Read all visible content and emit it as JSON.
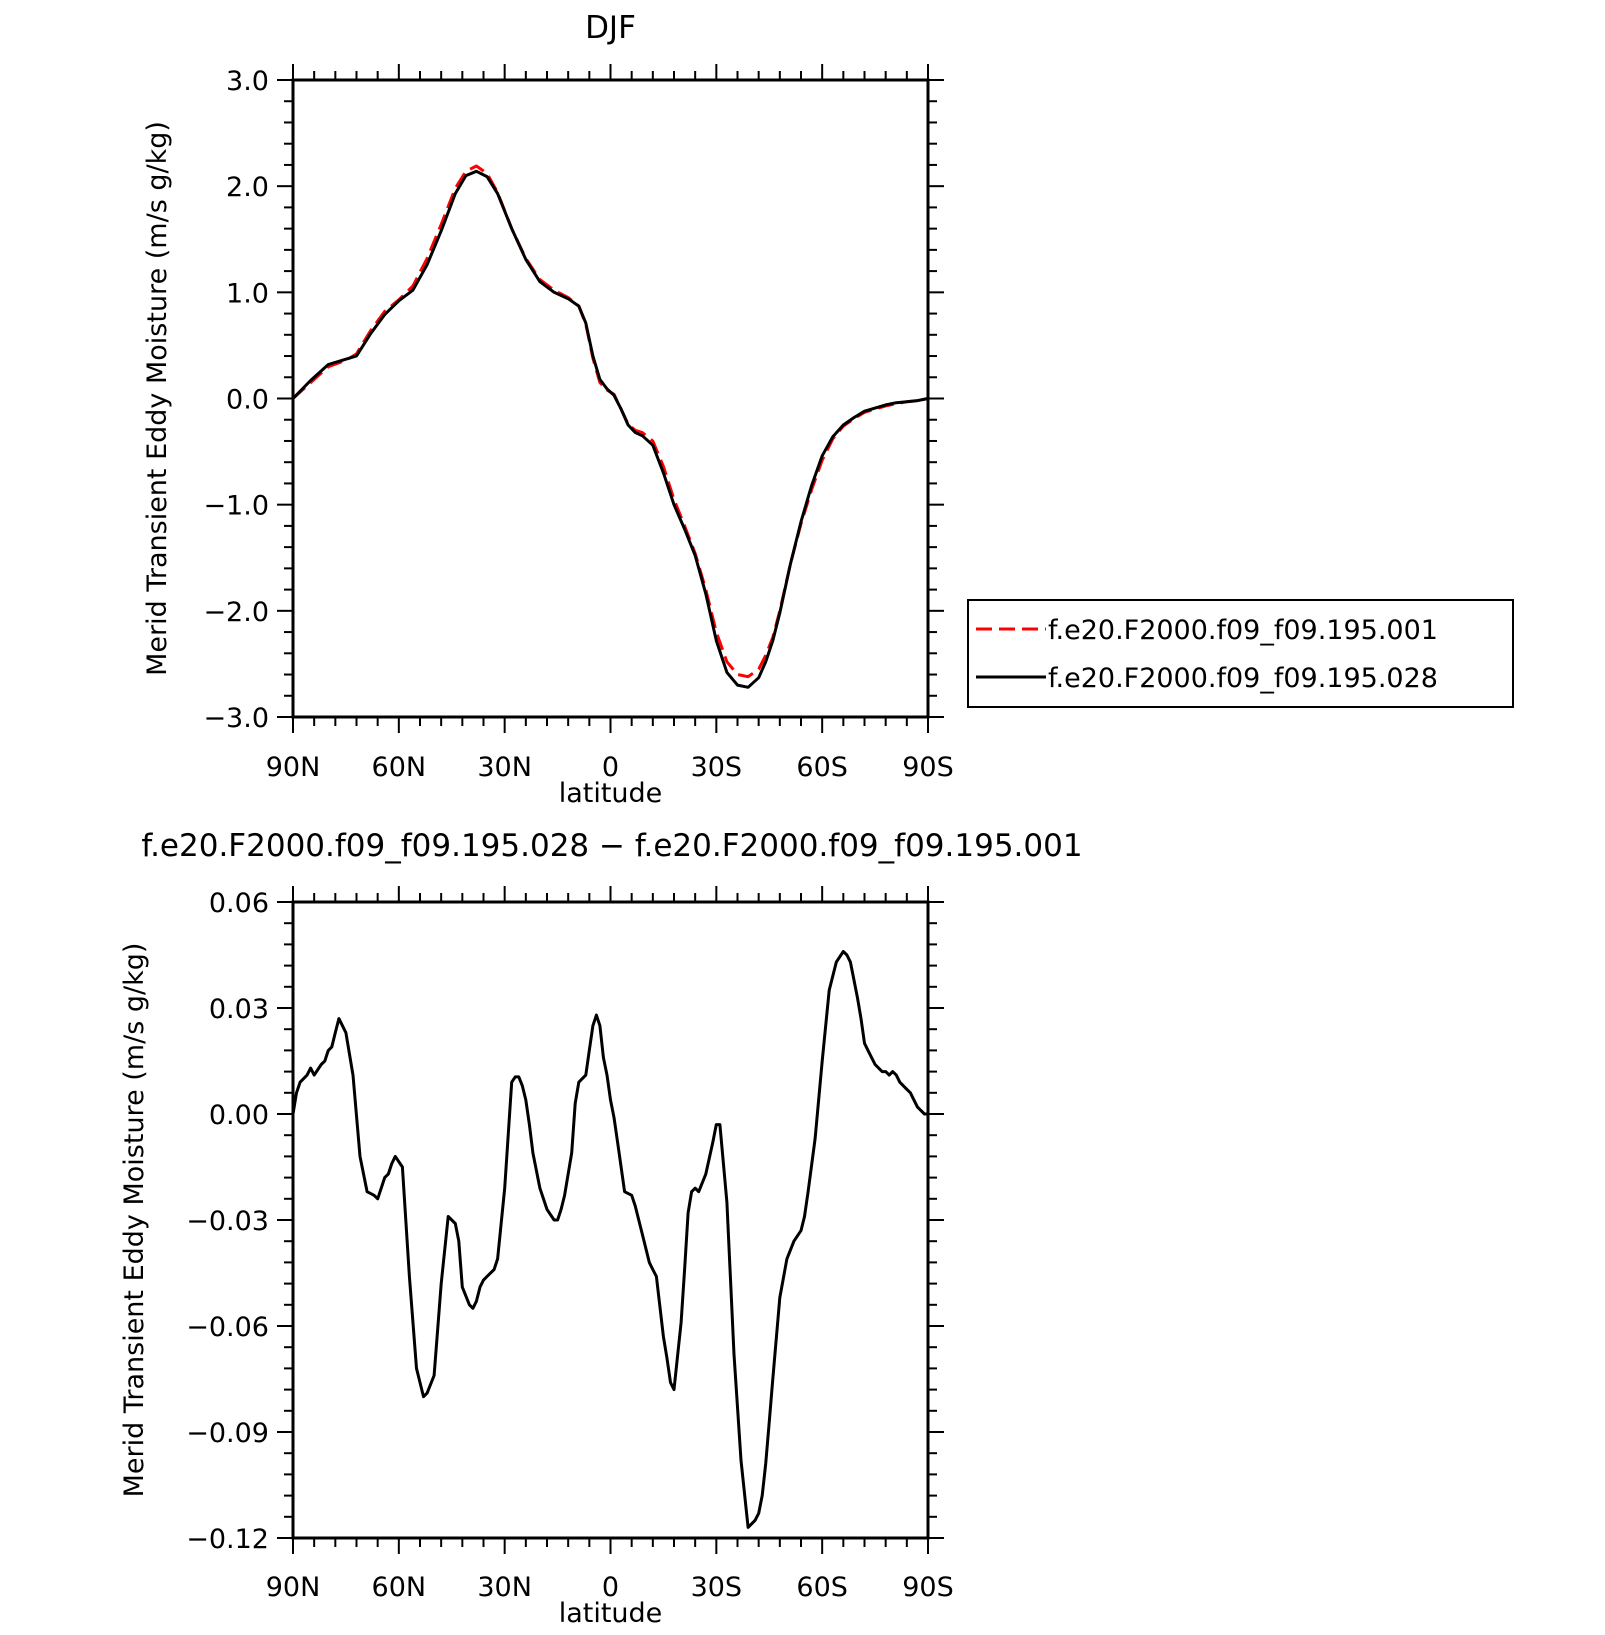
{
  "chart_data": [
    {
      "type": "line",
      "title": "DJF",
      "xlabel": "latitude",
      "ylabel": "Merid Transient Eddy Moisture (m/s g/kg)",
      "xlim": [
        90,
        -90
      ],
      "ylim": [
        -3.0,
        3.0
      ],
      "x_ticks": [
        90,
        60,
        30,
        0,
        -30,
        -60,
        -90
      ],
      "x_tick_labels": [
        "90N",
        "60N",
        "30N",
        "0",
        "30S",
        "60S",
        "90S"
      ],
      "y_ticks": [
        -3.0,
        -2.0,
        -1.0,
        0.0,
        1.0,
        2.0,
        3.0
      ],
      "y_tick_labels": [
        "−3.0",
        "−2.0",
        "−1.0",
        "0.0",
        "1.0",
        "2.0",
        "3.0"
      ],
      "grid": false,
      "legend": "right",
      "series": [
        {
          "name": "f.e20.F2000.f09_f09.195.001",
          "color": "#ff0000",
          "dash": "dashed",
          "x": [
            90,
            85,
            80,
            75,
            72,
            68,
            64,
            60,
            56,
            52,
            48,
            44,
            41,
            38,
            35,
            32,
            28,
            24,
            20,
            16,
            12,
            9,
            7,
            5,
            3,
            1,
            -1,
            -3,
            -5,
            -7,
            -9,
            -12,
            -15,
            -18,
            -21,
            -24,
            -27,
            -30,
            -33,
            -36,
            -39,
            -42,
            -44,
            -46,
            -48,
            -51,
            -54,
            -57,
            -60,
            -63,
            -66,
            -69,
            -72,
            -75,
            -78,
            -81,
            -84,
            -87,
            -90
          ],
          "y": [
            0.0,
            0.15,
            0.3,
            0.36,
            0.42,
            0.64,
            0.82,
            0.93,
            1.06,
            1.32,
            1.64,
            1.98,
            2.14,
            2.19,
            2.12,
            1.94,
            1.6,
            1.32,
            1.12,
            1.02,
            0.95,
            0.87,
            0.7,
            0.38,
            0.15,
            0.08,
            0.04,
            -0.1,
            -0.24,
            -0.3,
            -0.32,
            -0.4,
            -0.64,
            -0.95,
            -1.2,
            -1.46,
            -1.8,
            -2.2,
            -2.48,
            -2.6,
            -2.62,
            -2.55,
            -2.42,
            -2.25,
            -2.0,
            -1.56,
            -1.18,
            -0.86,
            -0.58,
            -0.38,
            -0.26,
            -0.19,
            -0.13,
            -0.1,
            -0.07,
            -0.05,
            -0.03,
            -0.02,
            0.0
          ]
        },
        {
          "name": "f.e20.F2000.f09_f09.195.028",
          "color": "#000000",
          "dash": "solid",
          "x": [
            90,
            85,
            80,
            75,
            72,
            68,
            64,
            60,
            56,
            52,
            48,
            44,
            41,
            38,
            35,
            32,
            28,
            24,
            20,
            16,
            12,
            9,
            7,
            5,
            3,
            1,
            -1,
            -3,
            -5,
            -7,
            -9,
            -12,
            -15,
            -18,
            -21,
            -24,
            -27,
            -30,
            -33,
            -36,
            -39,
            -42,
            -44,
            -46,
            -48,
            -51,
            -54,
            -57,
            -60,
            -63,
            -66,
            -69,
            -72,
            -75,
            -78,
            -81,
            -84,
            -87,
            -90
          ],
          "y": [
            0.0,
            0.17,
            0.32,
            0.37,
            0.4,
            0.61,
            0.79,
            0.92,
            1.02,
            1.26,
            1.58,
            1.93,
            2.1,
            2.14,
            2.09,
            1.93,
            1.6,
            1.31,
            1.1,
            1.0,
            0.94,
            0.87,
            0.71,
            0.4,
            0.18,
            0.09,
            0.03,
            -0.1,
            -0.25,
            -0.32,
            -0.35,
            -0.44,
            -0.7,
            -1.0,
            -1.23,
            -1.48,
            -1.84,
            -2.28,
            -2.58,
            -2.7,
            -2.72,
            -2.63,
            -2.48,
            -2.28,
            -2.02,
            -1.56,
            -1.16,
            -0.82,
            -0.54,
            -0.36,
            -0.25,
            -0.18,
            -0.12,
            -0.09,
            -0.06,
            -0.04,
            -0.03,
            -0.02,
            0.0
          ]
        }
      ]
    },
    {
      "type": "line",
      "title": "f.e20.F2000.f09_f09.195.028 − f.e20.F2000.f09_f09.195.001",
      "xlabel": "latitude",
      "ylabel": "Merid Transient Eddy Moisture (m/s g/kg)",
      "xlim": [
        90,
        -90
      ],
      "ylim": [
        -0.12,
        0.06
      ],
      "x_ticks": [
        90,
        60,
        30,
        0,
        -30,
        -60,
        -90
      ],
      "x_tick_labels": [
        "90N",
        "60N",
        "30N",
        "0",
        "30S",
        "60S",
        "90S"
      ],
      "y_ticks": [
        -0.12,
        -0.09,
        -0.06,
        -0.03,
        0.0,
        0.03,
        0.06
      ],
      "y_tick_labels": [
        "−0.12",
        "−0.09",
        "−0.06",
        "−0.03",
        "0.00",
        "0.03",
        "0.06"
      ],
      "grid": false,
      "series": [
        {
          "color": "#000000",
          "dash": "solid",
          "x": [
            90,
            89,
            88,
            86,
            85,
            84,
            82,
            81,
            80,
            79,
            78,
            77,
            75,
            73,
            71,
            69,
            67,
            66,
            64,
            63,
            62,
            61,
            59,
            57,
            55,
            53,
            52,
            50,
            48,
            46,
            44,
            43,
            42,
            40,
            39,
            38,
            37,
            36,
            35,
            33,
            32,
            30,
            28,
            27,
            26,
            25,
            24,
            23,
            22,
            20,
            18,
            16,
            15,
            14,
            13,
            11,
            10,
            9,
            7,
            6,
            5,
            4,
            3,
            2,
            1,
            0,
            -1,
            -2,
            -4,
            -6,
            -7,
            -9,
            -11,
            -12,
            -13,
            -15,
            -16,
            -17,
            -18,
            -20,
            -21,
            -22,
            -23,
            -24,
            -25,
            -27,
            -29,
            -30,
            -31,
            -33,
            -35,
            -37,
            -39,
            -41,
            -42,
            -43,
            -44,
            -45,
            -46,
            -48,
            -50,
            -52,
            -54,
            -55,
            -56,
            -58,
            -60,
            -62,
            -64,
            -66,
            -67,
            -68,
            -69,
            -70,
            -71,
            -72,
            -73,
            -75,
            -77,
            -78,
            -79,
            -80,
            -81,
            -82,
            -84,
            -85,
            -86,
            -87,
            -88,
            -89,
            -90
          ],
          "y": [
            0.0,
            0.006,
            0.009,
            0.011,
            0.013,
            0.011,
            0.014,
            0.015,
            0.018,
            0.019,
            0.023,
            0.027,
            0.023,
            0.011,
            -0.012,
            -0.022,
            -0.023,
            -0.024,
            -0.018,
            -0.017,
            -0.014,
            -0.012,
            -0.015,
            -0.046,
            -0.072,
            -0.08,
            -0.079,
            -0.074,
            -0.048,
            -0.029,
            -0.031,
            -0.036,
            -0.049,
            -0.054,
            -0.055,
            -0.053,
            -0.049,
            -0.047,
            -0.046,
            -0.044,
            -0.041,
            -0.021,
            0.009,
            0.0105,
            0.0105,
            0.008,
            0.004,
            -0.003,
            -0.011,
            -0.021,
            -0.027,
            -0.03,
            -0.03,
            -0.027,
            -0.023,
            -0.011,
            0.003,
            0.009,
            0.011,
            0.018,
            0.025,
            0.028,
            0.025,
            0.016,
            0.011,
            0.004,
            -0.001,
            -0.008,
            -0.022,
            -0.023,
            -0.026,
            -0.034,
            -0.042,
            -0.044,
            -0.046,
            -0.063,
            -0.069,
            -0.076,
            -0.078,
            -0.059,
            -0.044,
            -0.028,
            -0.022,
            -0.021,
            -0.022,
            -0.017,
            -0.008,
            -0.003,
            -0.003,
            -0.025,
            -0.068,
            -0.098,
            -0.117,
            -0.115,
            -0.113,
            -0.108,
            -0.099,
            -0.087,
            -0.075,
            -0.052,
            -0.041,
            -0.036,
            -0.033,
            -0.029,
            -0.022,
            -0.007,
            0.015,
            0.035,
            0.043,
            0.046,
            0.045,
            0.043,
            0.038,
            0.033,
            0.027,
            0.02,
            0.018,
            0.014,
            0.012,
            0.012,
            0.011,
            0.012,
            0.011,
            0.009,
            0.007,
            0.006,
            0.004,
            0.002,
            0.001,
            0.0,
            0.0
          ]
        }
      ]
    }
  ]
}
